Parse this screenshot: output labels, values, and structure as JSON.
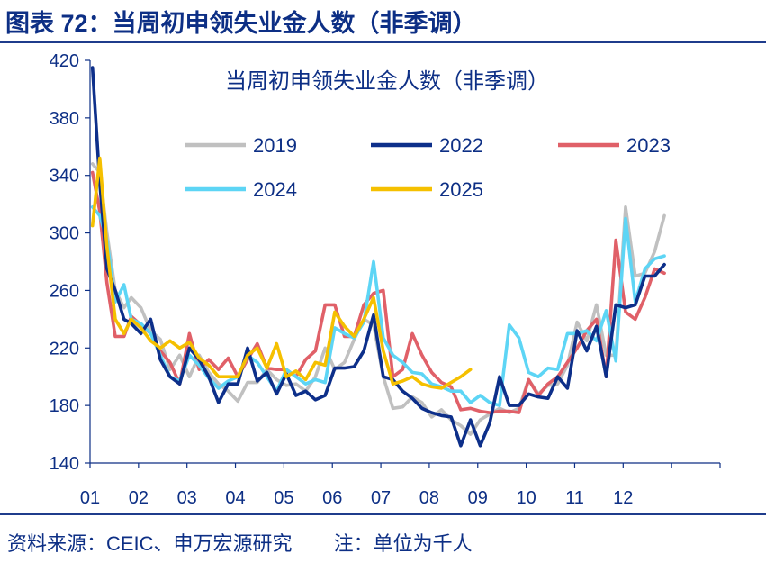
{
  "figure": {
    "title": "图表 72：当周初申领失业金人数（非季调）",
    "source": "资料来源：CEIC、申万宏源研究",
    "note": "注：单位为千人"
  },
  "colors": {
    "title": "#0d2f85",
    "rule": "#1f3c8c",
    "axis": "#0d2f85"
  },
  "chart_data": {
    "type": "line",
    "title": "当周初申领失业金人数（非季调）",
    "xlabel": "",
    "ylabel": "",
    "ylim": [
      140,
      420
    ],
    "yticks": [
      140,
      180,
      220,
      260,
      300,
      340,
      380,
      420
    ],
    "xlim": [
      1,
      14
    ],
    "xticks": [
      {
        "label": "01",
        "x": 1
      },
      {
        "label": "02",
        "x": 2
      },
      {
        "label": "03",
        "x": 3
      },
      {
        "label": "04",
        "x": 4
      },
      {
        "label": "05",
        "x": 5
      },
      {
        "label": "06",
        "x": 6
      },
      {
        "label": "07",
        "x": 7
      },
      {
        "label": "08",
        "x": 8
      },
      {
        "label": "09",
        "x": 9
      },
      {
        "label": "10",
        "x": 10
      },
      {
        "label": "11",
        "x": 11
      },
      {
        "label": "12",
        "x": 12
      }
    ],
    "grid": false,
    "legend_position": "top",
    "series": [
      {
        "name": "2019",
        "color": "#c0c0c0",
        "x": [
          1.05,
          1.2,
          1.35,
          1.52,
          1.7,
          1.85,
          2.05,
          2.25,
          2.45,
          2.65,
          2.85,
          3.05,
          3.25,
          3.45,
          3.65,
          3.85,
          4.05,
          4.25,
          4.45,
          4.65,
          4.85,
          5.05,
          5.25,
          5.45,
          5.65,
          5.85,
          6.05,
          6.25,
          6.45,
          6.65,
          6.85,
          7.05,
          7.25,
          7.45,
          7.65,
          7.85,
          8.05,
          8.25,
          8.45,
          8.65,
          8.85,
          9.05,
          9.25,
          9.45,
          9.65,
          9.85,
          10.05,
          10.25,
          10.45,
          10.65,
          10.85,
          11.05,
          11.25,
          11.45,
          11.65,
          11.85,
          12.05,
          12.25,
          12.45,
          12.65,
          12.85
        ],
        "values": [
          348,
          342,
          300,
          260,
          248,
          255,
          248,
          232,
          226,
          205,
          215,
          200,
          215,
          203,
          195,
          190,
          183,
          196,
          196,
          205,
          198,
          194,
          195,
          190,
          200,
          220,
          205,
          210,
          226,
          240,
          236,
          200,
          178,
          179,
          186,
          182,
          172,
          177,
          170,
          166,
          160,
          170,
          174,
          178,
          175,
          178,
          198,
          188,
          194,
          195,
          208,
          238,
          225,
          250,
          215,
          215,
          318,
          270,
          272,
          287,
          312
        ]
      },
      {
        "name": "2022",
        "color": "#0d2f8a",
        "x": [
          1.05,
          1.2,
          1.35,
          1.52,
          1.7,
          1.85,
          2.05,
          2.25,
          2.45,
          2.65,
          2.85,
          3.05,
          3.25,
          3.45,
          3.65,
          3.85,
          4.05,
          4.25,
          4.45,
          4.65,
          4.85,
          5.05,
          5.25,
          5.45,
          5.65,
          5.85,
          6.05,
          6.25,
          6.45,
          6.65,
          6.85,
          7.05,
          7.25,
          7.45,
          7.65,
          7.85,
          8.05,
          8.25,
          8.45,
          8.65,
          8.85,
          9.05,
          9.25,
          9.45,
          9.65,
          9.85,
          10.05,
          10.25,
          10.45,
          10.65,
          10.85,
          11.05,
          11.25,
          11.45,
          11.65,
          11.85,
          12.05,
          12.25,
          12.45,
          12.65,
          12.85
        ],
        "values": [
          415,
          335,
          275,
          260,
          240,
          237,
          230,
          240,
          212,
          200,
          195,
          220,
          212,
          200,
          182,
          195,
          195,
          220,
          197,
          203,
          188,
          202,
          187,
          190,
          184,
          187,
          206,
          206,
          207,
          218,
          243,
          200,
          198,
          190,
          185,
          178,
          175,
          173,
          172,
          152,
          170,
          152,
          168,
          200,
          180,
          180,
          188,
          186,
          185,
          200,
          192,
          232,
          218,
          235,
          200,
          250,
          248,
          250,
          270,
          270,
          278
        ]
      },
      {
        "name": "2023",
        "color": "#e06068",
        "x": [
          1.05,
          1.2,
          1.35,
          1.52,
          1.7,
          1.85,
          2.05,
          2.25,
          2.45,
          2.65,
          2.85,
          3.05,
          3.25,
          3.45,
          3.65,
          3.85,
          4.05,
          4.25,
          4.45,
          4.65,
          4.85,
          5.05,
          5.25,
          5.45,
          5.65,
          5.85,
          6.05,
          6.25,
          6.45,
          6.65,
          6.85,
          7.05,
          7.25,
          7.45,
          7.65,
          7.85,
          8.05,
          8.25,
          8.45,
          8.65,
          8.85,
          9.05,
          9.25,
          9.45,
          9.65,
          9.85,
          10.05,
          10.25,
          10.45,
          10.65,
          10.85,
          11.05,
          11.25,
          11.45,
          11.65,
          11.85,
          12.05,
          12.25,
          12.45,
          12.65,
          12.85
        ],
        "values": [
          342,
          315,
          265,
          228,
          228,
          242,
          236,
          230,
          218,
          210,
          195,
          230,
          205,
          212,
          205,
          213,
          200,
          212,
          223,
          206,
          205,
          205,
          200,
          212,
          218,
          250,
          250,
          228,
          228,
          250,
          258,
          260,
          200,
          205,
          230,
          215,
          203,
          196,
          193,
          177,
          178,
          176,
          175,
          176,
          176,
          175,
          198,
          187,
          195,
          200,
          210,
          220,
          232,
          240,
          200,
          295,
          245,
          240,
          255,
          275,
          272
        ]
      },
      {
        "name": "2024",
        "color": "#5dd5f5",
        "x": [
          1.05,
          1.2,
          1.35,
          1.52,
          1.7,
          1.85,
          2.05,
          2.25,
          2.45,
          2.65,
          2.85,
          3.05,
          3.25,
          3.45,
          3.65,
          3.85,
          4.05,
          4.25,
          4.45,
          4.65,
          4.85,
          5.05,
          5.25,
          5.45,
          5.65,
          5.85,
          6.05,
          6.25,
          6.45,
          6.65,
          6.85,
          7.05,
          7.25,
          7.45,
          7.65,
          7.85,
          8.05,
          8.25,
          8.45,
          8.65,
          8.85,
          9.05,
          9.25,
          9.45,
          9.65,
          9.85,
          10.05,
          10.25,
          10.45,
          10.65,
          10.85,
          11.05,
          11.25,
          11.45,
          11.65,
          11.85,
          12.05,
          12.25,
          12.45,
          12.65,
          12.85
        ],
        "values": [
          318,
          312,
          295,
          252,
          264,
          240,
          237,
          230,
          215,
          200,
          197,
          215,
          208,
          199,
          192,
          197,
          200,
          215,
          210,
          200,
          190,
          205,
          200,
          195,
          198,
          196,
          234,
          230,
          227,
          238,
          280,
          227,
          215,
          210,
          203,
          202,
          195,
          193,
          190,
          190,
          182,
          187,
          182,
          180,
          236,
          227,
          203,
          200,
          206,
          205,
          230,
          230,
          232,
          225,
          246,
          211,
          310,
          252,
          275,
          282,
          284
        ]
      },
      {
        "name": "2025",
        "color": "#f5c000",
        "x": [
          1.05,
          1.2,
          1.35,
          1.52,
          1.7,
          1.85,
          2.05,
          2.25,
          2.45,
          2.65,
          2.85,
          3.05,
          3.25,
          3.45,
          3.65,
          3.85,
          4.05,
          4.25,
          4.45,
          4.65,
          4.85,
          5.05,
          5.25,
          5.45,
          5.65,
          5.85,
          6.05,
          6.25,
          6.45,
          6.65,
          6.85,
          7.05,
          7.25,
          7.45,
          7.65,
          7.85,
          8.05,
          8.25,
          8.45,
          8.65,
          8.85
        ],
        "values": [
          305,
          352,
          290,
          240,
          230,
          240,
          234,
          225,
          220,
          225,
          220,
          224,
          213,
          208,
          200,
          200,
          200,
          215,
          220,
          206,
          223,
          200,
          204,
          198,
          210,
          208,
          245,
          235,
          228,
          240,
          255,
          218,
          195,
          197,
          200,
          195,
          193,
          192,
          196,
          200,
          205
        ]
      }
    ]
  }
}
